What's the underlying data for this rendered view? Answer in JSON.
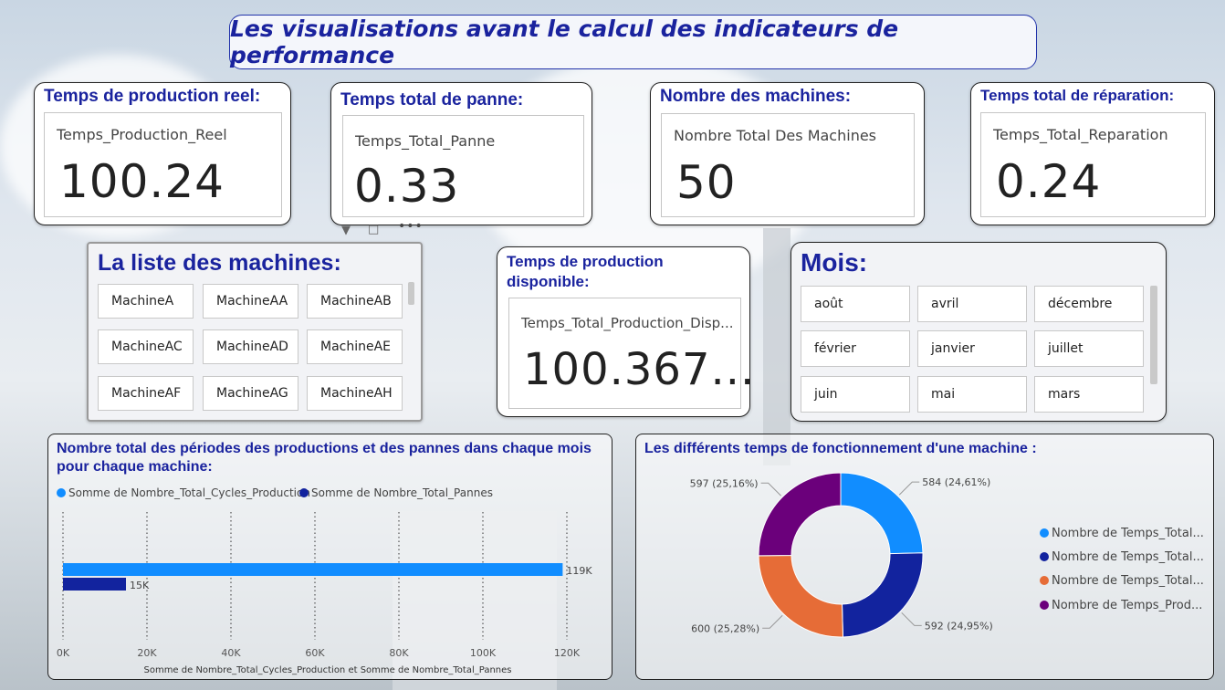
{
  "page_title": "Les visualisations avant le calcul des indicateurs de performance",
  "kpis": [
    {
      "title": "Temps de production reel:",
      "label": "Temps_Production_Reel",
      "value": "100.24"
    },
    {
      "title": "Temps total de panne:",
      "label": "Temps_Total_Panne",
      "value": "0.33"
    },
    {
      "title": "Nombre des machines:",
      "label": "Nombre Total Des Machines",
      "value": "50"
    },
    {
      "title": "Temps total de réparation:",
      "label": "Temps_Total_Reparation",
      "value": "0.24"
    }
  ],
  "machines_slicer": {
    "title": "La liste des machines:",
    "items": [
      "MachineA",
      "MachineAA",
      "MachineAB",
      "MachineAC",
      "MachineAD",
      "MachineAE",
      "MachineAF",
      "MachineAG",
      "MachineAH"
    ]
  },
  "available_time": {
    "title_line1": "Temps de production",
    "title_line2": "disponible:",
    "label": "Temps_Total_Production_Disp...",
    "value": "100.367..."
  },
  "months_slicer": {
    "title": "Mois:",
    "items": [
      "août",
      "avril",
      "décembre",
      "février",
      "janvier",
      "juillet",
      "juin",
      "mai",
      "mars"
    ]
  },
  "bar_chart": {
    "title_line1": "Nombre total des périodes des productions et des pannes dans chaque mois",
    "title_line2": "pour chaque machine:",
    "legend": [
      "Somme de Nombre_Total_Cycles_Production",
      "Somme de Nombre_Total_Pannes"
    ],
    "colors": [
      "#118dff",
      "#12239e"
    ],
    "data_labels": [
      "119K",
      "15K"
    ],
    "x_ticks": [
      "0K",
      "20K",
      "40K",
      "60K",
      "80K",
      "100K",
      "120K"
    ],
    "xlabel": "Somme de Nombre_Total_Cycles_Production et Somme de Nombre_Total_Pannes"
  },
  "donut_chart": {
    "title": "Les différents temps de fonctionnement d'une machine :",
    "legend": [
      "Nombre de Temps_Total...",
      "Nombre de Temps_Total...",
      "Nombre de Temps_Total...",
      "Nombre de Temps_Prod..."
    ],
    "slice_labels": [
      "584 (24,61%)",
      "592 (24,95%)",
      "600 (25,28%)",
      "597 (25,16%)"
    ],
    "colors": [
      "#118dff",
      "#12239e",
      "#e66c37",
      "#6b007b"
    ]
  },
  "chart_data": [
    {
      "type": "bar",
      "orientation": "horizontal",
      "categories": [
        ""
      ],
      "series": [
        {
          "name": "Somme de Nombre_Total_Cycles_Production",
          "values": [
            119000
          ]
        },
        {
          "name": "Somme de Nombre_Total_Pannes",
          "values": [
            15000
          ]
        }
      ],
      "xlabel": "Somme de Nombre_Total_Cycles_Production et Somme de Nombre_Total_Pannes",
      "xlim": [
        0,
        120000
      ],
      "grid": true,
      "legend_position": "top-left"
    },
    {
      "type": "pie",
      "donut": true,
      "labels": [
        "Nombre de Temps_Total...",
        "Nombre de Temps_Total...",
        "Nombre de Temps_Total...",
        "Nombre de Temps_Prod..."
      ],
      "values": [
        584,
        592,
        600,
        597
      ],
      "percents": [
        24.61,
        24.95,
        25.28,
        25.16
      ],
      "legend_position": "right"
    }
  ]
}
